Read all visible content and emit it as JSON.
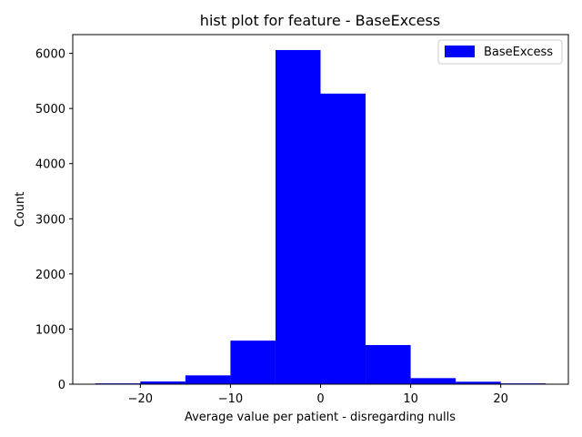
{
  "chart_data": {
    "type": "bar",
    "title": "hist plot for feature -  BaseExcess",
    "xlabel": "Average value per patient - disregarding nulls",
    "ylabel": "Count",
    "xlim": [
      -27.5,
      27.5
    ],
    "ylim": [
      0,
      6340
    ],
    "xticks": [
      -20,
      -10,
      0,
      10,
      20
    ],
    "xtick_labels": [
      "−20",
      "−10",
      "0",
      "10",
      "20"
    ],
    "yticks": [
      0,
      1000,
      2000,
      3000,
      4000,
      5000,
      6000
    ],
    "ytick_labels": [
      "0",
      "1000",
      "2000",
      "3000",
      "4000",
      "5000",
      "6000"
    ],
    "bin_edges": [
      -25,
      -20,
      -15,
      -10,
      -5,
      0,
      5,
      10,
      15,
      20,
      25
    ],
    "series": [
      {
        "name": "BaseExcess",
        "color": "#0000ff",
        "values": [
          15,
          50,
          160,
          790,
          6060,
          5270,
          710,
          110,
          45,
          15
        ]
      }
    ],
    "legend": {
      "position": "top-right",
      "label": "BaseExcess"
    }
  }
}
